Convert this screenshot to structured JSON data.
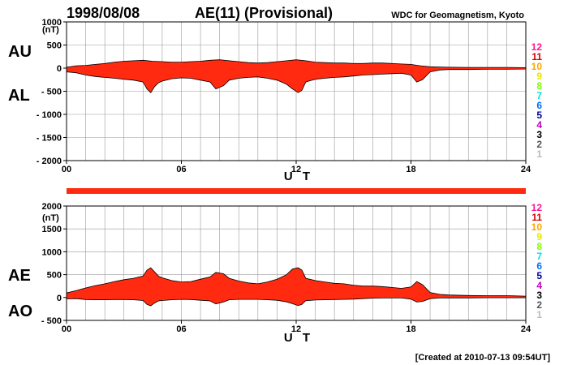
{
  "header": {
    "date": "1998/08/08",
    "title": "AE(11) (Provisional)",
    "source": "WDC for Geomagnetism, Kyoto"
  },
  "footer": {
    "created": "[Created at 2010-07-13 09:54UT]"
  },
  "colors": {
    "fill": "#ff2a10",
    "outline": "#000000",
    "grid": "#9a9a9a",
    "station_count_colors": {
      "12": "#ff1493",
      "11": "#d40000",
      "10": "#ffa500",
      "9": "#e6e600",
      "8": "#80ff00",
      "7": "#00e0e0",
      "6": "#0070ff",
      "5": "#0000a0",
      "4": "#c000c0",
      "3": "#000000",
      "2": "#555555",
      "1": "#bbbbbb"
    }
  },
  "chart_data": [
    {
      "type": "area",
      "panel": "upper",
      "left_labels": [
        "AU",
        "AL"
      ],
      "unit_label": "(nT)",
      "xlabel": "U T",
      "x_ticks": [
        "00",
        "06",
        "12",
        "18",
        "24"
      ],
      "y_ticks": [
        "1000",
        "500",
        "0",
        "- 500",
        "- 1000",
        "- 1500",
        "- 2000"
      ],
      "xlim": [
        0,
        24
      ],
      "ylim": [
        -2000,
        1000
      ],
      "station_counts": [
        "12",
        "11",
        "10",
        "9",
        "8",
        "7",
        "6",
        "5",
        "4",
        "3",
        "2",
        "1"
      ],
      "grid": true,
      "series": [
        {
          "name": "AU",
          "x": [
            0,
            0.5,
            1,
            1.5,
            2,
            2.5,
            3,
            3.5,
            4,
            4.5,
            5,
            5.5,
            6,
            6.5,
            7,
            7.5,
            8,
            8.5,
            9,
            9.5,
            10,
            10.5,
            11,
            11.5,
            12,
            12.5,
            13,
            13.5,
            14,
            14.5,
            15,
            15.5,
            16,
            16.5,
            17,
            17.5,
            18,
            18.5,
            19,
            19.5,
            20,
            21,
            22,
            23,
            24
          ],
          "values": [
            20,
            50,
            60,
            80,
            100,
            130,
            150,
            160,
            170,
            150,
            140,
            130,
            130,
            140,
            150,
            170,
            180,
            160,
            140,
            120,
            110,
            120,
            140,
            160,
            180,
            160,
            130,
            120,
            110,
            110,
            100,
            100,
            110,
            110,
            100,
            90,
            80,
            50,
            30,
            25,
            20,
            15,
            15,
            15,
            10
          ]
        },
        {
          "name": "AL",
          "x": [
            0,
            0.5,
            1,
            1.5,
            2,
            2.5,
            3,
            3.5,
            4,
            4.2,
            4.4,
            4.6,
            4.8,
            5,
            5.5,
            6,
            6.5,
            7,
            7.5,
            7.8,
            8.2,
            8.5,
            9,
            9.5,
            10,
            10.5,
            11,
            11.5,
            11.8,
            12.1,
            12.3,
            12.5,
            13,
            13.5,
            14,
            14.5,
            15,
            15.5,
            16,
            16.5,
            17,
            17.5,
            18,
            18.3,
            18.6,
            19,
            19.5,
            20,
            21,
            22,
            23,
            24
          ],
          "values": [
            -80,
            -100,
            -150,
            -180,
            -200,
            -220,
            -240,
            -260,
            -300,
            -450,
            -530,
            -400,
            -320,
            -280,
            -230,
            -210,
            -220,
            -260,
            -300,
            -450,
            -380,
            -260,
            -220,
            -200,
            -190,
            -220,
            -260,
            -350,
            -450,
            -530,
            -480,
            -300,
            -240,
            -220,
            -200,
            -190,
            -170,
            -150,
            -140,
            -130,
            -120,
            -110,
            -150,
            -300,
            -250,
            -80,
            -40,
            -30,
            -30,
            -25,
            -25,
            -20
          ]
        }
      ]
    },
    {
      "type": "area",
      "panel": "lower",
      "left_labels": [
        "AE",
        "AO"
      ],
      "unit_label": "(nT)",
      "xlabel": "U T",
      "x_ticks": [
        "00",
        "06",
        "12",
        "18",
        "24"
      ],
      "y_ticks": [
        "2000",
        "1500",
        "1000",
        "500",
        "0",
        "- 500"
      ],
      "xlim": [
        0,
        24
      ],
      "ylim": [
        -500,
        2000
      ],
      "station_counts": [
        "12",
        "11",
        "10",
        "9",
        "8",
        "7",
        "6",
        "5",
        "4",
        "3",
        "2",
        "1"
      ],
      "grid": true,
      "series": [
        {
          "name": "AE",
          "x": [
            0,
            0.5,
            1,
            1.5,
            2,
            2.5,
            3,
            3.5,
            4,
            4.2,
            4.4,
            4.6,
            4.8,
            5,
            5.5,
            6,
            6.5,
            7,
            7.5,
            7.8,
            8.2,
            8.5,
            9,
            9.5,
            10,
            10.5,
            11,
            11.5,
            11.8,
            12.1,
            12.3,
            12.5,
            13,
            13.5,
            14,
            14.5,
            15,
            15.5,
            16,
            16.5,
            17,
            17.5,
            18,
            18.3,
            18.6,
            19,
            19.5,
            20,
            21,
            22,
            23,
            24
          ],
          "values": [
            100,
            150,
            210,
            260,
            300,
            350,
            390,
            420,
            470,
            600,
            650,
            560,
            470,
            430,
            370,
            340,
            350,
            400,
            450,
            550,
            520,
            420,
            360,
            320,
            300,
            340,
            400,
            500,
            620,
            650,
            600,
            420,
            370,
            340,
            310,
            300,
            270,
            250,
            250,
            240,
            220,
            200,
            230,
            350,
            280,
            110,
            70,
            55,
            45,
            40,
            40,
            30
          ]
        },
        {
          "name": "AO",
          "x": [
            0,
            0.5,
            1,
            1.5,
            2,
            2.5,
            3,
            3.5,
            4,
            4.2,
            4.4,
            4.6,
            4.8,
            5,
            5.5,
            6,
            6.5,
            7,
            7.5,
            7.8,
            8.2,
            8.5,
            9,
            9.5,
            10,
            10.5,
            11,
            11.5,
            11.8,
            12.1,
            12.3,
            12.5,
            13,
            13.5,
            14,
            14.5,
            15,
            15.5,
            16,
            16.5,
            17,
            17.5,
            18,
            18.3,
            18.6,
            19,
            19.5,
            20,
            21,
            22,
            23,
            24
          ],
          "values": [
            -30,
            -25,
            -45,
            -50,
            -50,
            -45,
            -45,
            -50,
            -65,
            -150,
            -180,
            -120,
            -75,
            -65,
            -50,
            -40,
            -45,
            -60,
            -75,
            -140,
            -100,
            -50,
            -40,
            -40,
            -40,
            -50,
            -60,
            -95,
            -135,
            -175,
            -150,
            -70,
            -55,
            -50,
            -45,
            -40,
            -35,
            -25,
            -15,
            -10,
            -10,
            -10,
            -35,
            -100,
            -85,
            -25,
            -10,
            -8,
            -8,
            -5,
            -5,
            -5
          ]
        }
      ]
    }
  ]
}
